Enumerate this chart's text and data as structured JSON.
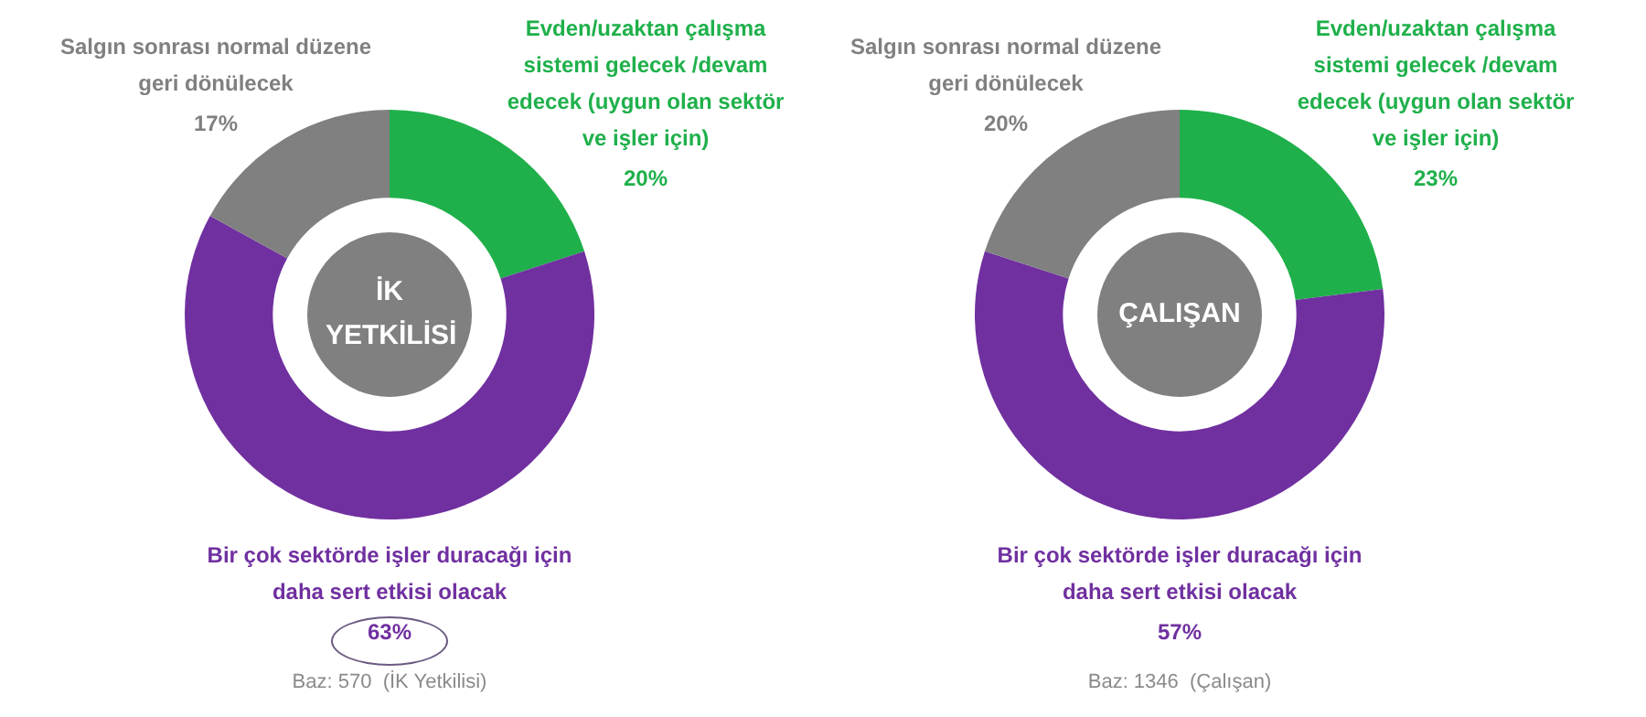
{
  "chart_data": [
    {
      "type": "donut",
      "categories": [
        "Evden/uzaktan çalışma sistemi gelecek /devam edecek (uygun olan sektör ve işler için)",
        "Bir çok sektörde işler duracağı için daha sert etkisi olacak",
        "Salgın sonrası normal düzene geri dönülecek"
      ],
      "values": [
        20,
        63,
        17
      ],
      "colors": [
        "#1fb04b",
        "#7030a0",
        "#808080"
      ],
      "value_labels": [
        "20%",
        "63%",
        "17%"
      ],
      "legend": false,
      "annotations": [
        "İK YETKİLİSİ",
        "Baz: 570  (İK Yetkilisi)"
      ]
    },
    {
      "type": "donut",
      "categories": [
        "Evden/uzaktan çalışma sistemi gelecek /devam edecek (uygun olan sektör ve işler için)",
        "Bir çok sektörde işler duracağı için daha sert etkisi olacak",
        "Salgın sonrası normal düzene geri dönülecek"
      ],
      "values": [
        23,
        57,
        20
      ],
      "colors": [
        "#1fb04b",
        "#7030a0",
        "#808080"
      ],
      "value_labels": [
        "23%",
        "57%",
        "20%"
      ],
      "legend": false,
      "annotations": [
        "ÇALIŞAN",
        "Baz: 1346  (Çalışan)"
      ]
    }
  ]
}
